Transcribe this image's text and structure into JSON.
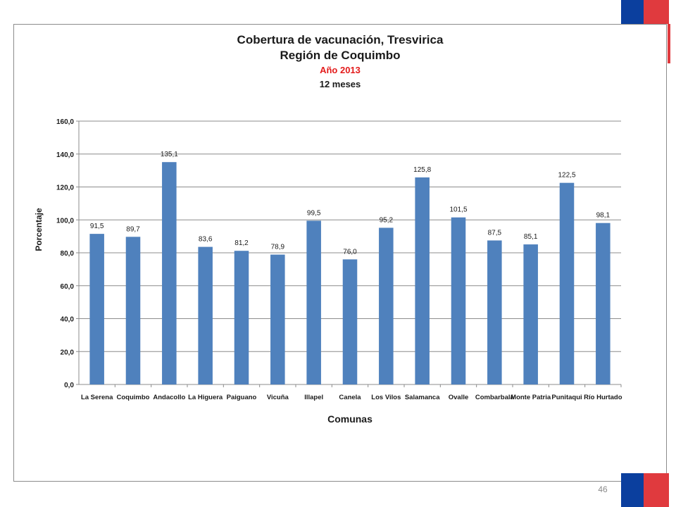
{
  "slide": {
    "page_number": "46",
    "accent_colors": {
      "blue": "#0b3f9e",
      "red": "#e03a3e"
    }
  },
  "chart_data": {
    "type": "bar",
    "title": "Cobertura de vacunación, Tresvirica",
    "subtitle": "Región de Coquimbo",
    "year_label": "Año 2013",
    "period_label": "12 meses",
    "xlabel": "Comunas",
    "ylabel": "Porcentaje",
    "ylim": [
      0,
      160
    ],
    "yticks": [
      "0,0",
      "20,0",
      "40,0",
      "60,0",
      "80,0",
      "100,0",
      "120,0",
      "140,0",
      "160,0"
    ],
    "grid": true,
    "bar_color": "#4f81bd",
    "categories": [
      "La Serena",
      "Coquimbo",
      "Andacollo",
      "La Higuera",
      "Paiguano",
      "Vicuña",
      "Illapel",
      "Canela",
      "Los Vilos",
      "Salamanca",
      "Ovalle",
      "Combarbalá",
      "Monte Patria",
      "Punitaqui",
      "Río Hurtado"
    ],
    "values": [
      91.5,
      89.7,
      135.1,
      83.6,
      81.2,
      78.9,
      99.5,
      76.0,
      95.2,
      125.8,
      101.5,
      87.5,
      85.1,
      122.5,
      98.1
    ],
    "value_labels": [
      "91,5",
      "89,7",
      "135,1",
      "83,6",
      "81,2",
      "78,9",
      "99,5",
      "76,0",
      "95,2",
      "125,8",
      "101,5",
      "87,5",
      "85,1",
      "122,5",
      "98,1"
    ]
  }
}
